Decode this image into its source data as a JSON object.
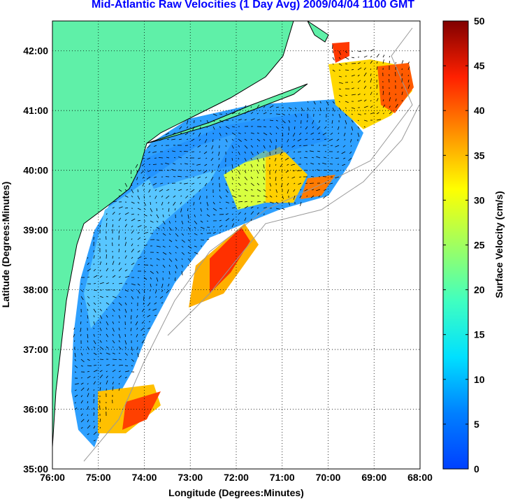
{
  "title": "Mid-Atlantic Raw Velocities (1 Day Avg) 2009/04/04 1100 GMT",
  "map": {
    "x_axis_label": "Longitude (Degrees:Minutes)",
    "y_axis_label": "Latitude (Degrees:Minutes)",
    "x_ticks": [
      "76:00",
      "75:00",
      "74:00",
      "73:00",
      "72:00",
      "71:00",
      "70:00",
      "69:00",
      "68:00"
    ],
    "y_ticks": [
      "42:00",
      "41:00",
      "40:00",
      "39:00",
      "38:00",
      "37:00",
      "36:00",
      "35:00"
    ],
    "lon_range": [
      -76,
      -68
    ],
    "lat_range": [
      35,
      42.5
    ],
    "grid": "dotted",
    "colors": {
      "land": "#5ff0a8",
      "coastline": "#000000",
      "bathymetry": "#999999",
      "vector": "#000000"
    }
  },
  "colorbar": {
    "label": "Surface Velocity (cm/s)",
    "ticks": [
      "0",
      "5",
      "10",
      "15",
      "20",
      "25",
      "30",
      "35",
      "40",
      "45",
      "50"
    ],
    "range": [
      0,
      50
    ],
    "colormap": "jet"
  }
}
